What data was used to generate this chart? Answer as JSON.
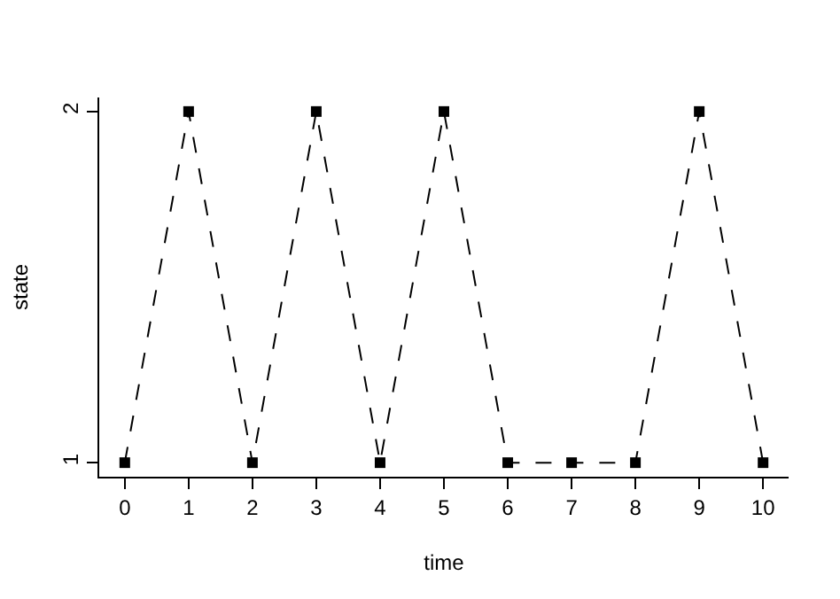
{
  "chart_data": {
    "type": "line",
    "xlabel": "time",
    "ylabel": "state",
    "x": [
      0,
      1,
      2,
      3,
      4,
      5,
      6,
      7,
      8,
      9,
      10
    ],
    "series": [
      {
        "color": "#000000",
        "values": [
          1,
          2,
          1,
          2,
          1,
          2,
          1,
          1,
          1,
          2,
          1
        ]
      }
    ],
    "xlim": [
      -0.4,
      10.4
    ],
    "xticks": [
      0,
      1,
      2,
      3,
      4,
      5,
      6,
      7,
      8,
      9,
      10
    ],
    "ylim": [
      0.96,
      2.04
    ],
    "yticks": [
      1,
      2
    ],
    "grid": false,
    "marker": "square",
    "line_style": "dashed"
  }
}
